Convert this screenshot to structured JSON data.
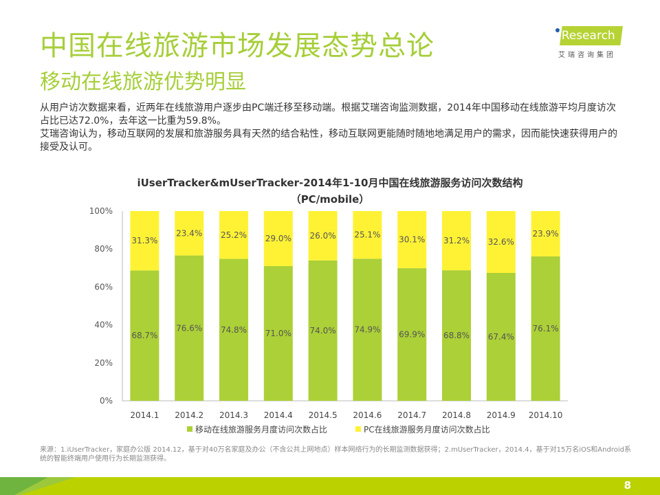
{
  "title": "中国在线旅游市场发展态势总论",
  "subtitle": "移动在线旅游优势明显",
  "body": [
    "从用户访次数据来看，近两年在线旅游用户逐步由PC端迁移至移动端。根据艾瑞咨询监测数据，2014年中国移动在线旅游平均月度访次占比已达72.0%，去年这一比重为59.8%。",
    "艾瑞咨询认为，移动互联网的发展和旅游服务具有天然的结合粘性，移动互联网更能随时随地地满足用户的需求，因而能快速获得用户的接受及认可。"
  ],
  "logo": {
    "brand": "iResearch",
    "cn": "艾瑞咨询集团"
  },
  "source": "来源：1.iUserTracker，家庭办公版 2014.12，基于对40万名家庭及办公（不含公共上网地点）样本网络行为的长期监测数据获得；2.mUserTracker，2014.4，基于对15万名iOS和Android系统的智能终端用户使用行为长期监测获得。",
  "page_number": "8",
  "chart_data": {
    "type": "bar",
    "stacked": true,
    "title": "iUserTracker&mUserTracker-2014年1-10月中国在线旅游服务访问次数结构",
    "subtitle": "（PC/mobile）",
    "categories": [
      "2014.1",
      "2014.2",
      "2014.3",
      "2014.4",
      "2014.5",
      "2014.6",
      "2014.7",
      "2014.8",
      "2014.9",
      "2014.10"
    ],
    "series": [
      {
        "name": "移动在线旅游服务月度访问次数占比",
        "color": "#acd037",
        "values": [
          68.7,
          76.6,
          74.8,
          71.0,
          74.0,
          74.9,
          69.9,
          68.8,
          67.4,
          76.1
        ]
      },
      {
        "name": "PC在线旅游服务月度访问次数占比",
        "color": "#fff235",
        "values": [
          31.3,
          23.4,
          25.2,
          29.0,
          26.0,
          25.1,
          30.1,
          31.2,
          32.6,
          23.9
        ]
      }
    ],
    "yticks": [
      "0%",
      "20%",
      "40%",
      "60%",
      "80%",
      "100%"
    ],
    "ylim": [
      0,
      100
    ],
    "legend": "bottom"
  }
}
